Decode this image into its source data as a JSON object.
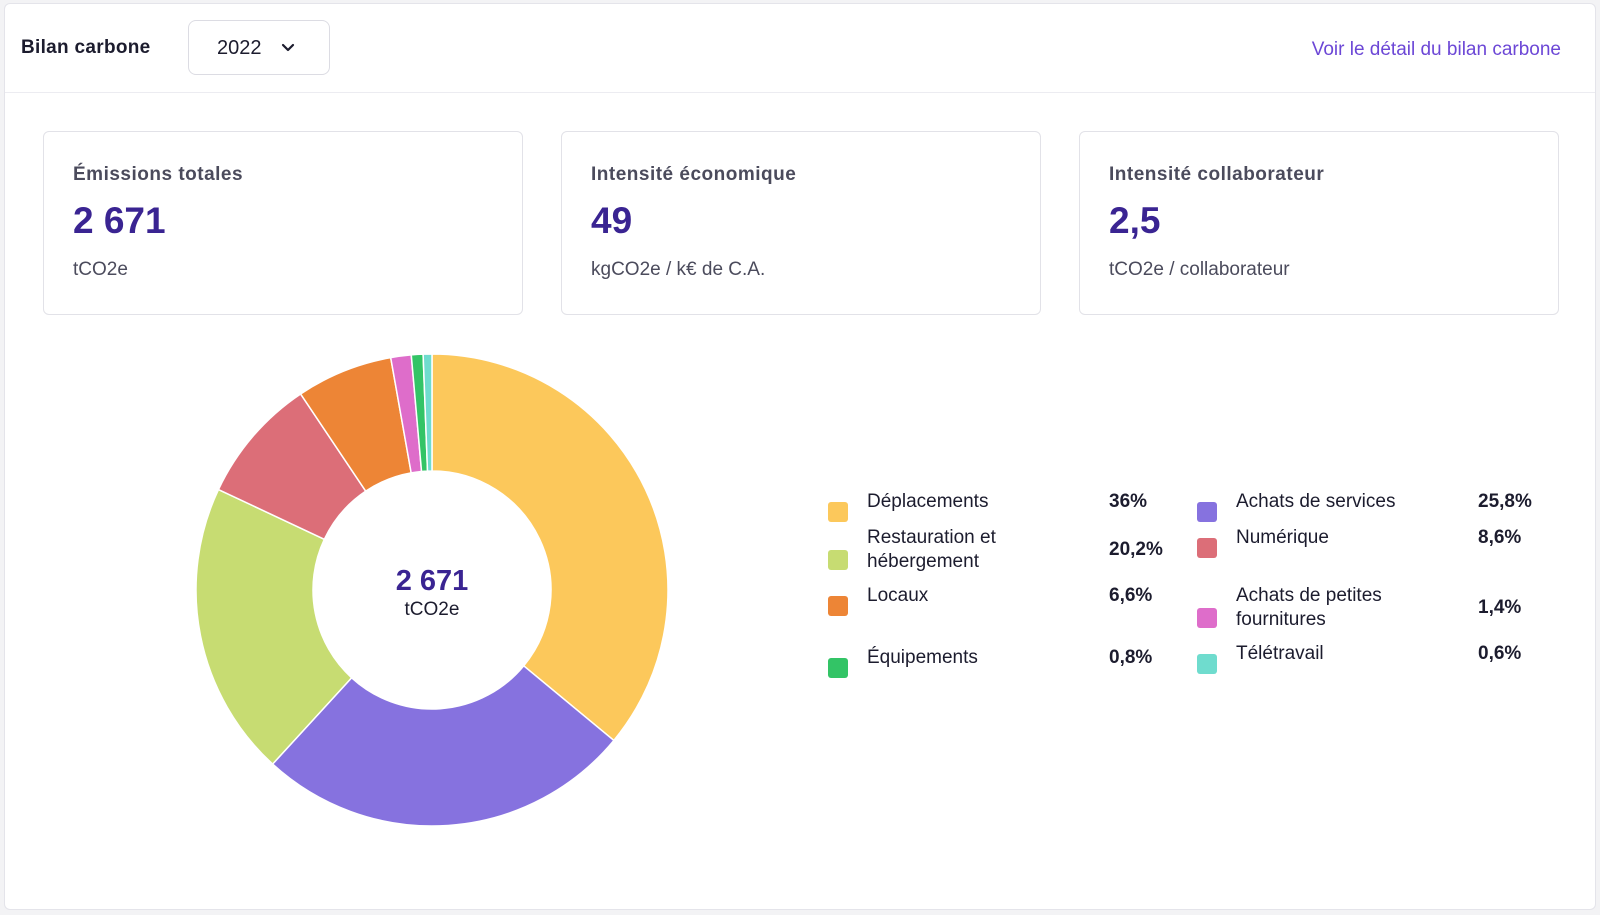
{
  "header": {
    "title": "Bilan carbone",
    "year_select": {
      "value": "2022"
    },
    "detail_link": "Voir le détail du bilan carbone"
  },
  "kpis": [
    {
      "title": "Émissions totales",
      "value": "2 671",
      "unit": "tCO2e"
    },
    {
      "title": "Intensité économique",
      "value": "49",
      "unit": "kgCO2e / k€ de C.A."
    },
    {
      "title": "Intensité collaborateur",
      "value": "2,5",
      "unit": "tCO2e / collaborateur"
    }
  ],
  "chart_data": {
    "type": "pie",
    "subtype": "donut",
    "center_value": "2 671",
    "center_unit": "tCO2e",
    "slices": [
      {
        "label": "Déplacements",
        "value": 36.0,
        "pct_label": "36%",
        "color": "#fcc85b"
      },
      {
        "label": "Achats de services",
        "value": 25.8,
        "pct_label": "25,8%",
        "color": "#8672df"
      },
      {
        "label": "Restauration et hébergement",
        "label_lines": [
          "Restauration et",
          "hébergement"
        ],
        "value": 20.2,
        "pct_label": "20,2%",
        "color": "#c7dc72"
      },
      {
        "label": "Numérique",
        "value": 8.6,
        "pct_label": "8,6%",
        "color": "#dc6e78"
      },
      {
        "label": "Locaux",
        "value": 6.6,
        "pct_label": "6,6%",
        "color": "#ed8536"
      },
      {
        "label": "Achats de petites fournitures",
        "label_lines": [
          "Achats de petites",
          "fournitures"
        ],
        "value": 1.4,
        "pct_label": "1,4%",
        "color": "#de6dca"
      },
      {
        "label": "Équipements",
        "value": 0.8,
        "pct_label": "0,8%",
        "color": "#33c466"
      },
      {
        "label": "Télétravail",
        "value": 0.6,
        "pct_label": "0,6%",
        "color": "#6fdcce"
      }
    ]
  }
}
